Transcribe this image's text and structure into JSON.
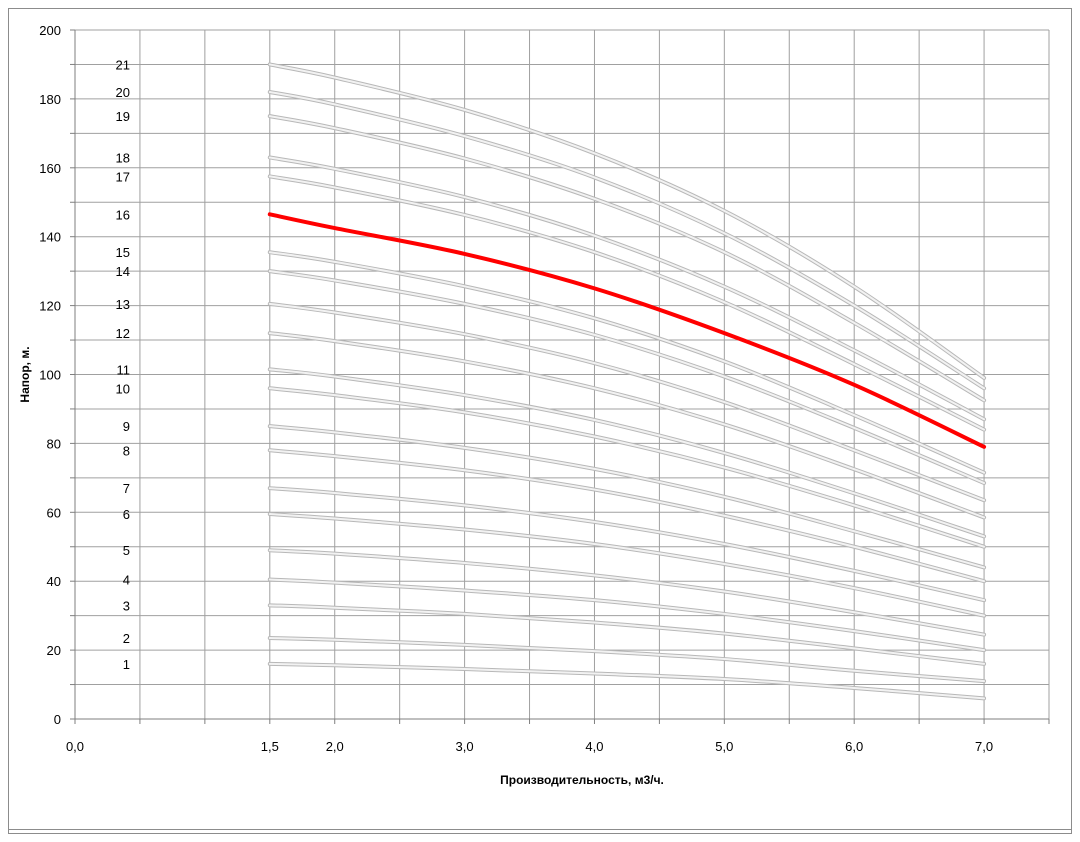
{
  "chart_data": {
    "type": "line",
    "xlabel": "Производительность, м3/ч.",
    "ylabel": "Напор, м.",
    "xlim": [
      0,
      7.5
    ],
    "ylim": [
      0,
      200
    ],
    "x_ticks": [
      0,
      1.5,
      2,
      3,
      4,
      5,
      6,
      7
    ],
    "x_tick_labels": [
      "0,0",
      "1,5",
      "2,0",
      "3,0",
      "4,0",
      "5,0",
      "6,0",
      "7,0"
    ],
    "y_ticks": [
      0,
      20,
      40,
      60,
      80,
      100,
      120,
      140,
      160,
      180,
      200
    ],
    "y_tick_labels": [
      "0",
      "20",
      "40",
      "60",
      "80",
      "100",
      "120",
      "140",
      "160",
      "180",
      "200"
    ],
    "grid": true,
    "legend": "none",
    "colors": {
      "default_curve": "#d0d0d0",
      "highlight_curve": "#ff0000",
      "grid": "#a0a0a0"
    },
    "x": [
      1.5,
      2.0,
      3.0,
      4.0,
      5.0,
      6.0,
      7.0
    ],
    "series": [
      {
        "label": "1",
        "values": [
          16.0,
          15.6,
          14.5,
          13.2,
          11.6,
          9.0,
          6.0
        ]
      },
      {
        "label": "2",
        "values": [
          23.5,
          23.0,
          21.5,
          19.7,
          17.4,
          14.0,
          11.0
        ]
      },
      {
        "label": "3",
        "values": [
          33.0,
          32.3,
          30.5,
          28.0,
          24.8,
          20.5,
          16.0
        ]
      },
      {
        "label": "4",
        "values": [
          40.5,
          39.6,
          37.3,
          34.5,
          30.5,
          25.5,
          20.0
        ]
      },
      {
        "label": "5",
        "values": [
          49.0,
          48.0,
          45.3,
          41.7,
          37.0,
          31.0,
          24.5
        ]
      },
      {
        "label": "6",
        "values": [
          59.5,
          58.2,
          55.0,
          50.8,
          45.0,
          38.0,
          30.0
        ]
      },
      {
        "label": "7",
        "values": [
          67.0,
          65.6,
          62.0,
          57.2,
          50.8,
          43.0,
          34.5
        ]
      },
      {
        "label": "8",
        "values": [
          78.0,
          76.3,
          72.2,
          66.6,
          59.0,
          50.0,
          40.0
        ]
      },
      {
        "label": "9",
        "values": [
          85.0,
          83.2,
          78.7,
          72.6,
          64.5,
          54.5,
          44.0
        ]
      },
      {
        "label": "10",
        "values": [
          96.0,
          94.0,
          89.0,
          82.0,
          73.0,
          62.0,
          50.0
        ]
      },
      {
        "label": "11",
        "values": [
          101.5,
          99.4,
          94.0,
          86.8,
          77.2,
          65.5,
          53.0
        ]
      },
      {
        "label": "12",
        "values": [
          112.0,
          109.7,
          103.8,
          96.0,
          85.5,
          72.5,
          58.5
        ]
      },
      {
        "label": "13",
        "values": [
          120.5,
          118.0,
          111.7,
          103.3,
          92.0,
          78.0,
          63.5
        ]
      },
      {
        "label": "14",
        "values": [
          130.0,
          127.3,
          120.5,
          111.5,
          99.4,
          84.5,
          68.5
        ]
      },
      {
        "label": "15",
        "values": [
          135.5,
          132.7,
          125.6,
          116.3,
          103.8,
          88.2,
          71.5
        ]
      },
      {
        "label": "16",
        "values": [
          146.5,
          142.5,
          135.0,
          125.0,
          112.0,
          97.0,
          79.0
        ],
        "highlight": true
      },
      {
        "label": "17",
        "values": [
          157.5,
          154.3,
          146.3,
          135.5,
          121.0,
          103.0,
          84.0
        ]
      },
      {
        "label": "18",
        "values": [
          163.0,
          159.7,
          151.5,
          140.3,
          125.5,
          107.0,
          87.0
        ]
      },
      {
        "label": "19",
        "values": [
          175.0,
          171.5,
          162.7,
          151.0,
          135.5,
          115.0,
          92.5
        ]
      },
      {
        "label": "20",
        "values": [
          182.0,
          178.4,
          169.2,
          157.2,
          141.0,
          120.0,
          96.0
        ]
      },
      {
        "label": "21",
        "values": [
          190.0,
          186.2,
          176.8,
          164.2,
          147.5,
          125.5,
          99.0
        ]
      }
    ]
  }
}
